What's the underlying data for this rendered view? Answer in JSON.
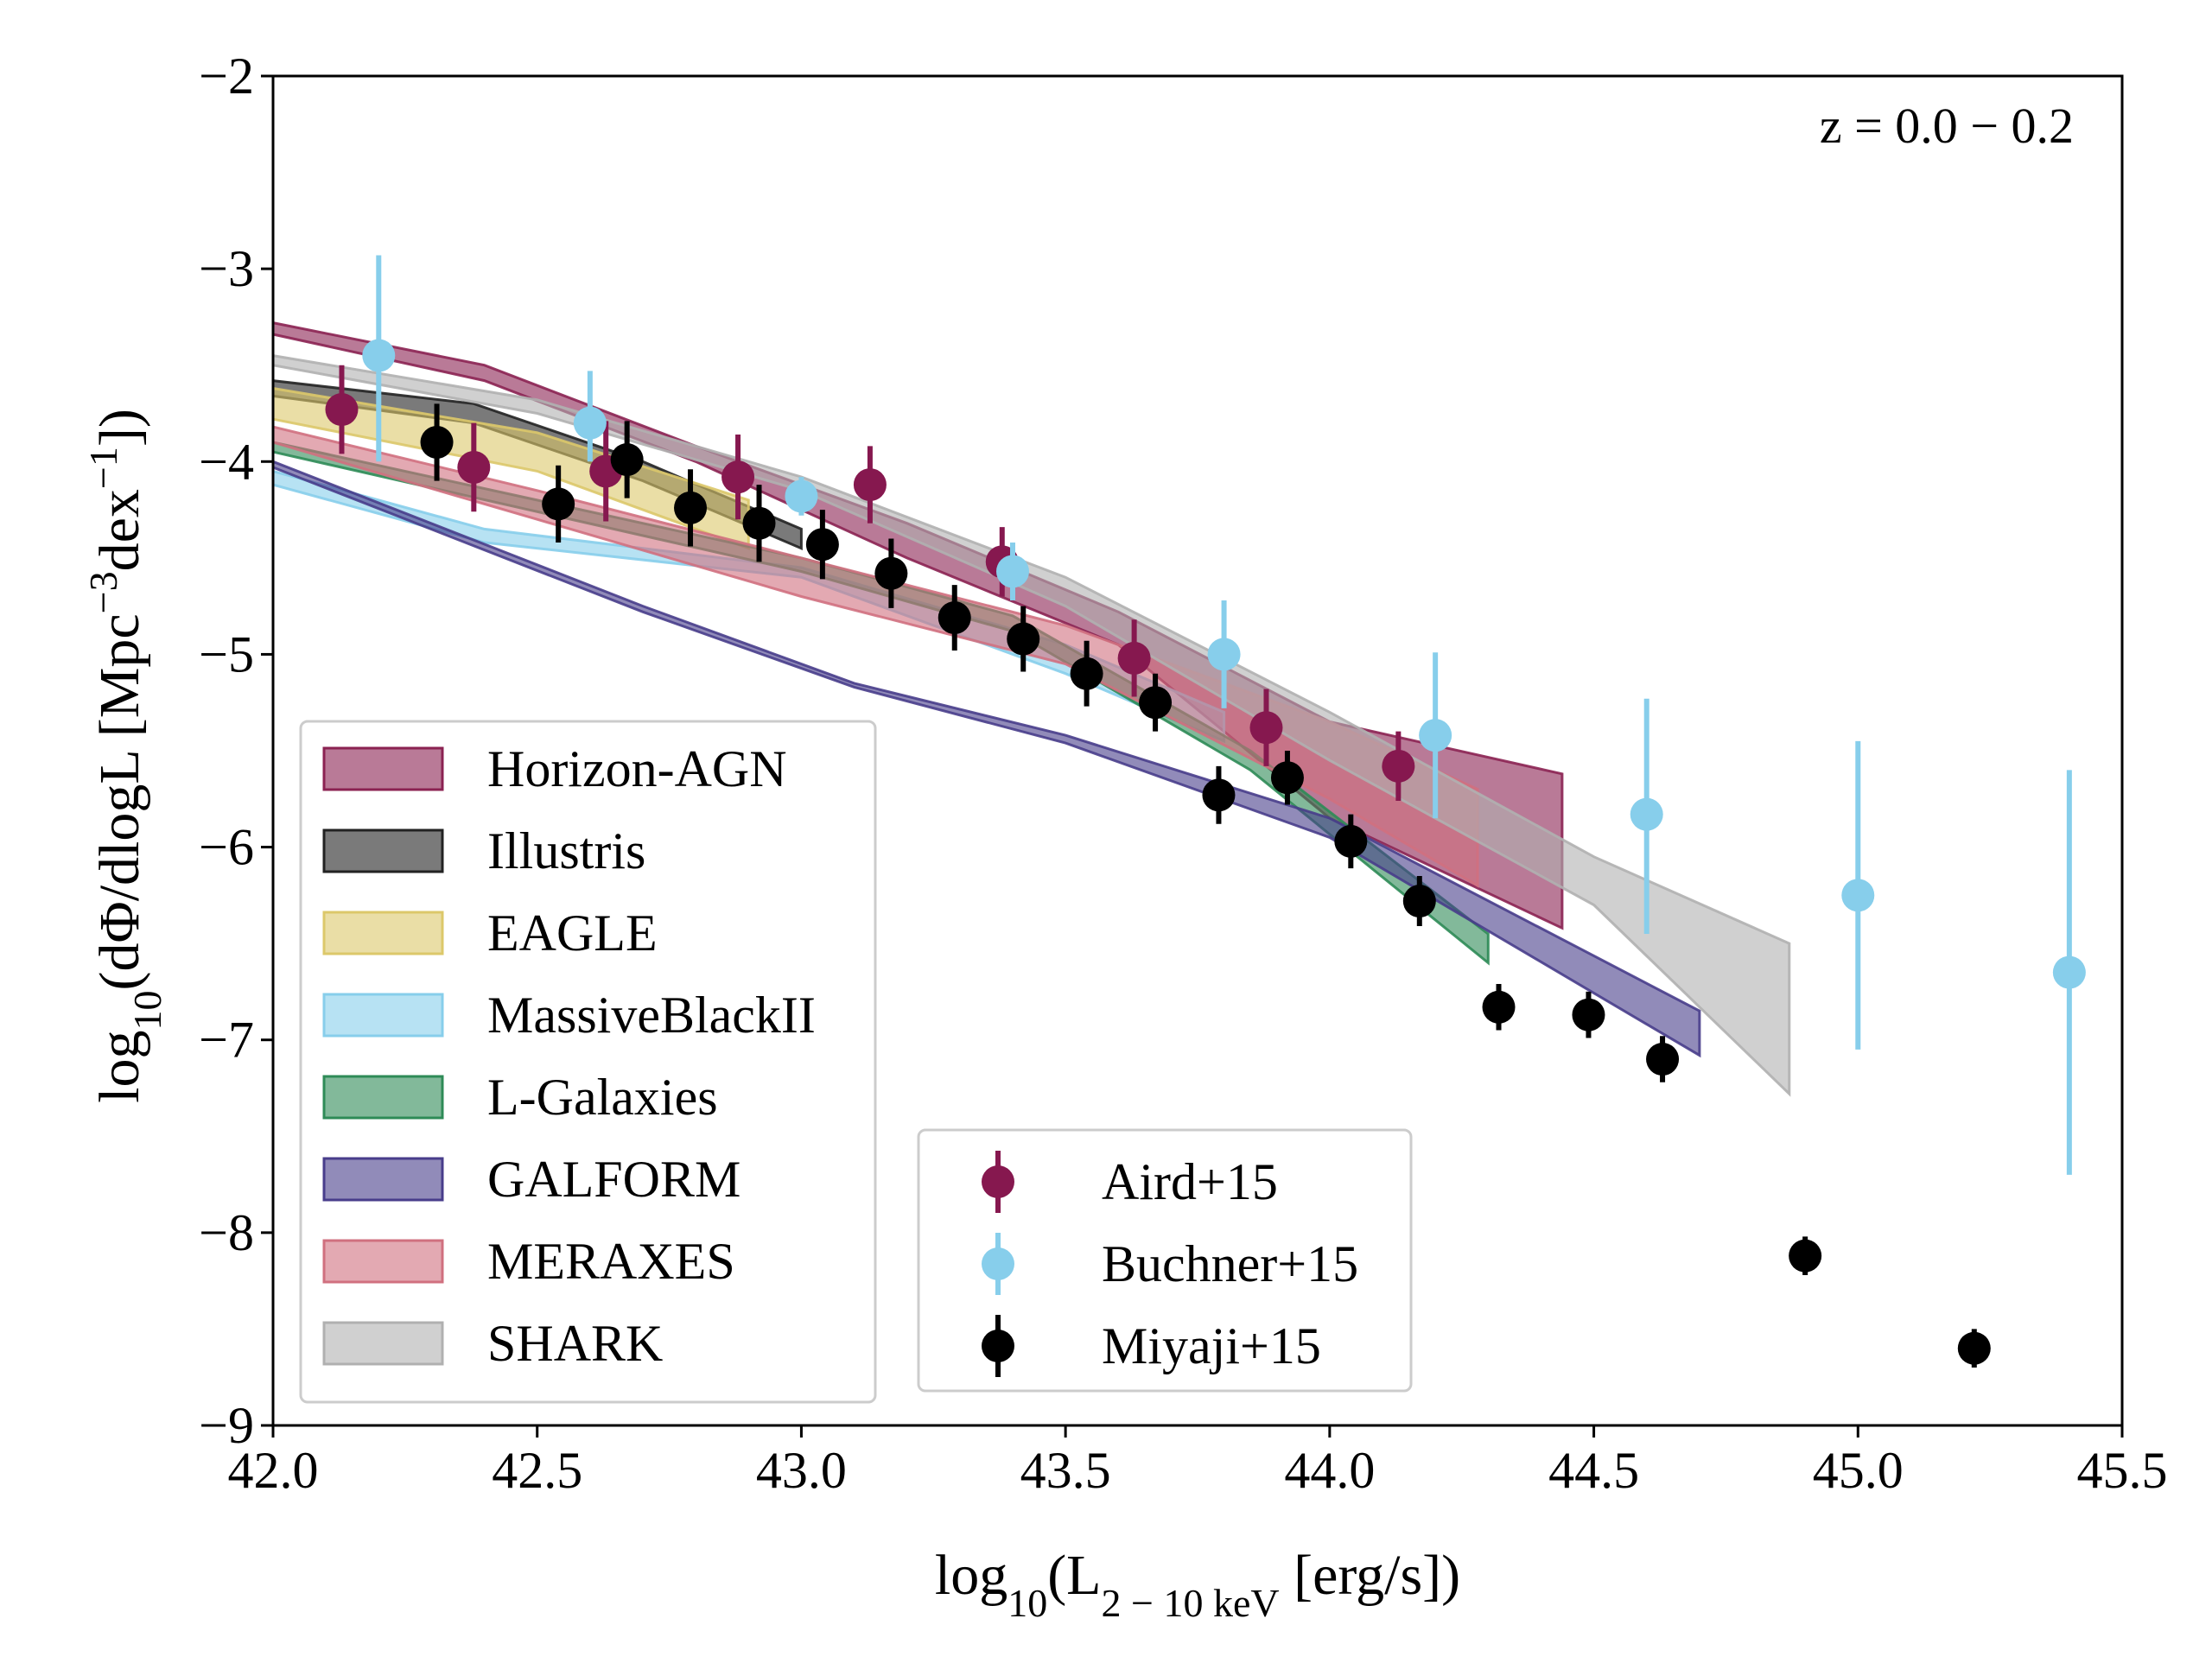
{
  "chart_data": {
    "type": "line",
    "title": "",
    "annotation": "z = 0.0 − 0.2",
    "xlabel": {
      "prefix": "log",
      "sub1": "10",
      "mid": "(L",
      "sub2": "2 − 10 keV",
      "suffix": " [erg/s])"
    },
    "ylabel": {
      "prefix": "log",
      "sub1": "10",
      "mid": "(dΦ/dlogL [Mpc",
      "sup1": "−3",
      "mid2": "dex",
      "sup2": "−1",
      "suffix": "])"
    },
    "xlim": [
      42.0,
      45.5
    ],
    "ylim": [
      -9,
      -2
    ],
    "x_ticks": [
      42.0,
      42.5,
      43.0,
      43.5,
      44.0,
      44.5,
      45.0,
      45.5
    ],
    "x_tick_labels": [
      "42.0",
      "42.5",
      "43.0",
      "43.5",
      "44.0",
      "44.5",
      "45.0",
      "45.5"
    ],
    "y_ticks": [
      -9,
      -8,
      -7,
      -6,
      -5,
      -4,
      -3,
      -2
    ],
    "y_tick_labels": [
      "−9",
      "−8",
      "−7",
      "−6",
      "−5",
      "−4",
      "−3",
      "−2"
    ],
    "bands": [
      {
        "name": "Horizon-AGN",
        "color": "#8b2252",
        "x": [
          42.0,
          42.4,
          42.8,
          43.2,
          43.6,
          44.0,
          44.44
        ],
        "upper": [
          -3.28,
          -3.5,
          -3.92,
          -4.32,
          -4.78,
          -5.35,
          -5.62
        ],
        "lower": [
          -3.34,
          -3.58,
          -4.0,
          -4.5,
          -4.95,
          -5.85,
          -6.42
        ]
      },
      {
        "name": "Illustris",
        "color": "#222222",
        "x": [
          42.0,
          42.38,
          42.7,
          43.0
        ],
        "upper": [
          -3.58,
          -3.7,
          -4.0,
          -4.35
        ],
        "lower": [
          -3.66,
          -3.8,
          -4.1,
          -4.45
        ]
      },
      {
        "name": "EAGLE",
        "color": "#dcc86a",
        "x": [
          42.0,
          42.5,
          42.9
        ],
        "upper": [
          -3.62,
          -3.85,
          -4.2
        ],
        "lower": [
          -3.78,
          -4.05,
          -4.45
        ]
      },
      {
        "name": "MassiveBlackII",
        "color": "#87ceeb",
        "x": [
          42.0,
          42.4,
          43.0,
          43.5,
          43.8
        ],
        "upper": [
          -4.05,
          -4.35,
          -4.55,
          -4.95,
          -5.3
        ],
        "lower": [
          -4.12,
          -4.42,
          -4.6,
          -5.1,
          -5.45
        ]
      },
      {
        "name": "L-Galaxies",
        "color": "#2e8b57",
        "x": [
          42.0,
          42.5,
          43.0,
          43.4,
          43.85,
          44.3
        ],
        "upper": [
          -3.9,
          -4.2,
          -4.5,
          -4.8,
          -5.5,
          -6.45
        ],
        "lower": [
          -3.95,
          -4.26,
          -4.57,
          -4.88,
          -5.6,
          -6.6
        ]
      },
      {
        "name": "GALFORM",
        "color": "#483d8b",
        "x": [
          42.0,
          42.7,
          43.1,
          43.5,
          44.0,
          44.7
        ],
        "upper": [
          -4.0,
          -4.75,
          -5.15,
          -5.42,
          -5.85,
          -6.85
        ],
        "lower": [
          -4.03,
          -4.78,
          -5.17,
          -5.46,
          -5.95,
          -7.08
        ]
      },
      {
        "name": "MERAXES",
        "color": "#d0707f",
        "x": [
          42.0,
          42.5,
          43.0,
          43.5,
          44.0,
          44.28
        ],
        "upper": [
          -3.82,
          -4.15,
          -4.5,
          -4.85,
          -5.35,
          -5.7
        ],
        "lower": [
          -3.9,
          -4.3,
          -4.7,
          -5.05,
          -5.75,
          -6.2
        ]
      },
      {
        "name": "SHARK",
        "color": "#b0b0b0",
        "x": [
          42.0,
          42.5,
          43.0,
          43.5,
          44.0,
          44.5,
          44.87
        ],
        "upper": [
          -3.45,
          -3.68,
          -4.08,
          -4.6,
          -5.3,
          -6.05,
          -6.5
        ],
        "lower": [
          -3.5,
          -3.75,
          -4.15,
          -4.75,
          -5.55,
          -6.3,
          -7.28
        ]
      }
    ],
    "points": [
      {
        "name": "Aird+15",
        "color": "#86184f",
        "x": [
          42.13,
          42.38,
          42.63,
          42.88,
          43.13,
          43.38,
          43.63,
          43.88,
          44.13
        ],
        "y": [
          -3.73,
          -4.03,
          -4.05,
          -4.08,
          -4.12,
          -4.52,
          -5.02,
          -5.38,
          -5.58
        ],
        "err": [
          0.23,
          0.23,
          0.26,
          0.22,
          0.2,
          0.18,
          0.2,
          0.2,
          0.18
        ]
      },
      {
        "name": "Buchner+15",
        "color": "#87ceeb",
        "x": [
          42.2,
          42.6,
          43.0,
          43.4,
          43.8,
          44.2,
          44.6,
          45.0,
          45.4
        ],
        "y": [
          -3.45,
          -3.8,
          -4.18,
          -4.57,
          -5.0,
          -5.42,
          -5.83,
          -6.25,
          -6.65
        ],
        "err_up": [
          0.52,
          0.27,
          0.1,
          0.15,
          0.28,
          0.43,
          0.6,
          0.8,
          1.05
        ],
        "err_down": [
          0.55,
          0.2,
          0.1,
          0.15,
          0.28,
          0.43,
          0.62,
          0.8,
          1.05
        ]
      },
      {
        "name": "Miyaji+15",
        "color": "#000000",
        "x": [
          42.31,
          42.54,
          42.67,
          42.79,
          42.92,
          43.04,
          43.17,
          43.29,
          43.42,
          43.54,
          43.67,
          43.79,
          43.92,
          44.04,
          44.17,
          44.32,
          44.49,
          44.63,
          44.9,
          45.22
        ],
        "y": [
          -3.9,
          -4.22,
          -3.99,
          -4.24,
          -4.32,
          -4.43,
          -4.58,
          -4.81,
          -4.92,
          -5.1,
          -5.25,
          -5.73,
          -5.64,
          -5.97,
          -6.28,
          -6.83,
          -6.87,
          -7.1,
          -8.12,
          -8.6
        ],
        "err": [
          0.2,
          0.2,
          0.2,
          0.2,
          0.2,
          0.18,
          0.18,
          0.17,
          0.17,
          0.17,
          0.15,
          0.15,
          0.14,
          0.14,
          0.13,
          0.12,
          0.12,
          0.12,
          0.1,
          0.1
        ]
      }
    ],
    "legend_models": [
      "Horizon-AGN",
      "Illustris",
      "EAGLE",
      "MassiveBlackII",
      "L-Galaxies",
      "GALFORM",
      "MERAXES",
      "SHARK"
    ],
    "legend_obs": [
      "Aird+15",
      "Buchner+15",
      "Miyaji+15"
    ],
    "legend_placement": "lower-left",
    "grid": false
  }
}
